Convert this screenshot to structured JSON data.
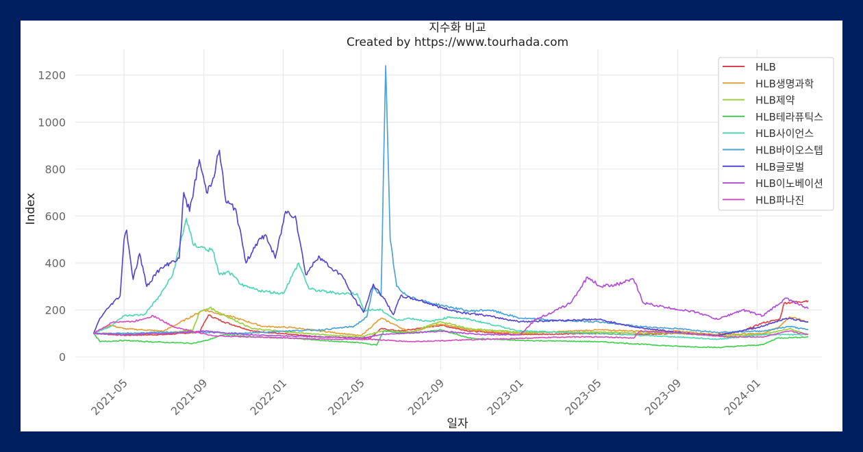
{
  "chart_data": {
    "type": "line",
    "title": "지수화 비교",
    "subtitle": "Created by https://www.tourhada.com",
    "xlabel": "일자",
    "ylabel": "Index",
    "ylim": [
      -55,
      1310
    ],
    "xlim": [
      "2021-02-15",
      "2024-04-10"
    ],
    "yticks": [
      0,
      200,
      400,
      600,
      800,
      1000,
      1200
    ],
    "xticks": [
      "2021-05",
      "2021-09",
      "2022-01",
      "2022-05",
      "2022-09",
      "2023-01",
      "2023-05",
      "2023-09",
      "2024-01"
    ],
    "grid": true,
    "legend_position": "top-right",
    "series": [
      {
        "name": "HLB",
        "color": "#d9434a",
        "points": [
          [
            "2021-03-15",
            100
          ],
          [
            "2021-05-01",
            92
          ],
          [
            "2021-07-01",
            95
          ],
          [
            "2021-08-25",
            105
          ],
          [
            "2021-09-08",
            178
          ],
          [
            "2021-10-01",
            150
          ],
          [
            "2021-11-15",
            110
          ],
          [
            "2022-01-15",
            95
          ],
          [
            "2022-03-01",
            85
          ],
          [
            "2022-05-15",
            80
          ],
          [
            "2022-06-01",
            120
          ],
          [
            "2022-07-01",
            110
          ],
          [
            "2022-09-01",
            135
          ],
          [
            "2022-10-15",
            110
          ],
          [
            "2023-01-01",
            95
          ],
          [
            "2023-05-01",
            100
          ],
          [
            "2023-07-01",
            95
          ],
          [
            "2023-09-01",
            100
          ],
          [
            "2023-11-01",
            95
          ],
          [
            "2023-12-10",
            110
          ],
          [
            "2024-01-10",
            145
          ],
          [
            "2024-02-05",
            160
          ],
          [
            "2024-02-12",
            230
          ],
          [
            "2024-03-05",
            235
          ],
          [
            "2024-03-20",
            240
          ]
        ]
      },
      {
        "name": "HLB생명과학",
        "color": "#e0a03a",
        "points": [
          [
            "2021-03-15",
            100
          ],
          [
            "2021-04-10",
            135
          ],
          [
            "2021-05-01",
            120
          ],
          [
            "2021-07-01",
            110
          ],
          [
            "2021-09-01",
            200
          ],
          [
            "2021-10-15",
            170
          ],
          [
            "2021-12-01",
            130
          ],
          [
            "2022-01-15",
            125
          ],
          [
            "2022-03-01",
            110
          ],
          [
            "2022-05-01",
            90
          ],
          [
            "2022-06-01",
            165
          ],
          [
            "2022-06-20",
            140
          ],
          [
            "2022-07-15",
            105
          ],
          [
            "2022-09-01",
            140
          ],
          [
            "2022-10-15",
            115
          ],
          [
            "2023-01-01",
            100
          ],
          [
            "2023-05-01",
            115
          ],
          [
            "2023-07-01",
            110
          ],
          [
            "2023-09-01",
            110
          ],
          [
            "2023-11-01",
            95
          ],
          [
            "2024-01-10",
            100
          ],
          [
            "2024-02-05",
            130
          ],
          [
            "2024-02-20",
            170
          ],
          [
            "2024-03-20",
            150
          ]
        ]
      },
      {
        "name": "HLB제약",
        "color": "#9bcf3c",
        "points": [
          [
            "2021-03-15",
            100
          ],
          [
            "2021-05-01",
            100
          ],
          [
            "2021-07-01",
            100
          ],
          [
            "2021-08-15",
            115
          ],
          [
            "2021-08-25",
            190
          ],
          [
            "2021-09-10",
            210
          ],
          [
            "2021-10-01",
            180
          ],
          [
            "2021-11-15",
            120
          ],
          [
            "2022-01-15",
            105
          ],
          [
            "2022-03-01",
            95
          ],
          [
            "2022-05-01",
            85
          ],
          [
            "2022-06-01",
            110
          ],
          [
            "2022-07-15",
            105
          ],
          [
            "2022-09-01",
            150
          ],
          [
            "2022-10-15",
            120
          ],
          [
            "2023-01-01",
            105
          ],
          [
            "2023-05-01",
            105
          ],
          [
            "2023-09-01",
            100
          ],
          [
            "2023-11-01",
            90
          ],
          [
            "2024-01-10",
            95
          ],
          [
            "2024-02-20",
            120
          ],
          [
            "2024-03-20",
            95
          ]
        ]
      },
      {
        "name": "HLB테라퓨틱스",
        "color": "#43d052",
        "points": [
          [
            "2021-03-15",
            100
          ],
          [
            "2021-03-25",
            65
          ],
          [
            "2021-05-01",
            70
          ],
          [
            "2021-07-01",
            62
          ],
          [
            "2021-08-15",
            58
          ],
          [
            "2021-09-05",
            70
          ],
          [
            "2021-10-01",
            95
          ],
          [
            "2021-11-15",
            85
          ],
          [
            "2022-01-15",
            80
          ],
          [
            "2022-03-01",
            70
          ],
          [
            "2022-05-01",
            60
          ],
          [
            "2022-05-25",
            50
          ],
          [
            "2022-06-05",
            110
          ],
          [
            "2022-07-15",
            100
          ],
          [
            "2022-09-01",
            115
          ],
          [
            "2022-10-15",
            80
          ],
          [
            "2023-01-01",
            70
          ],
          [
            "2023-05-01",
            65
          ],
          [
            "2023-09-01",
            45
          ],
          [
            "2023-11-01",
            40
          ],
          [
            "2024-01-10",
            52
          ],
          [
            "2024-02-01",
            80
          ],
          [
            "2024-03-20",
            85
          ]
        ]
      },
      {
        "name": "HLB사이언스",
        "color": "#4fd6b4",
        "points": [
          [
            "2021-03-15",
            100
          ],
          [
            "2021-04-10",
            130
          ],
          [
            "2021-05-01",
            175
          ],
          [
            "2021-06-01",
            180
          ],
          [
            "2021-06-25",
            260
          ],
          [
            "2021-07-15",
            350
          ],
          [
            "2021-08-05",
            590
          ],
          [
            "2021-08-15",
            480
          ],
          [
            "2021-09-15",
            450
          ],
          [
            "2021-09-25",
            350
          ],
          [
            "2021-10-10",
            360
          ],
          [
            "2021-11-01",
            300
          ],
          [
            "2021-12-01",
            280
          ],
          [
            "2022-01-01",
            270
          ],
          [
            "2022-01-25",
            400
          ],
          [
            "2022-02-10",
            290
          ],
          [
            "2022-03-01",
            280
          ],
          [
            "2022-04-01",
            270
          ],
          [
            "2022-04-25",
            270
          ],
          [
            "2022-05-05",
            200
          ],
          [
            "2022-06-01",
            200
          ],
          [
            "2022-06-25",
            155
          ],
          [
            "2022-07-15",
            165
          ],
          [
            "2022-08-15",
            150
          ],
          [
            "2022-09-15",
            170
          ],
          [
            "2022-10-15",
            160
          ],
          [
            "2023-01-01",
            110
          ],
          [
            "2023-05-01",
            100
          ],
          [
            "2023-09-01",
            85
          ],
          [
            "2023-11-01",
            75
          ],
          [
            "2024-01-10",
            95
          ],
          [
            "2024-03-20",
            95
          ]
        ]
      },
      {
        "name": "HLB바이오스텝",
        "color": "#4aa3d6",
        "points": [
          [
            "2021-03-15",
            100
          ],
          [
            "2021-05-01",
            100
          ],
          [
            "2021-07-01",
            105
          ],
          [
            "2021-09-01",
            105
          ],
          [
            "2021-11-01",
            100
          ],
          [
            "2022-01-01",
            110
          ],
          [
            "2022-03-01",
            115
          ],
          [
            "2022-04-20",
            130
          ],
          [
            "2022-05-10",
            170
          ],
          [
            "2022-05-20",
            300
          ],
          [
            "2022-06-01",
            260
          ],
          [
            "2022-06-08",
            1240
          ],
          [
            "2022-06-15",
            500
          ],
          [
            "2022-06-25",
            300
          ],
          [
            "2022-07-05",
            270
          ],
          [
            "2022-08-01",
            240
          ],
          [
            "2022-09-01",
            220
          ],
          [
            "2022-10-15",
            195
          ],
          [
            "2022-11-15",
            200
          ],
          [
            "2023-01-01",
            165
          ],
          [
            "2023-03-01",
            155
          ],
          [
            "2023-05-01",
            150
          ],
          [
            "2023-07-01",
            130
          ],
          [
            "2023-09-01",
            120
          ],
          [
            "2023-11-01",
            105
          ],
          [
            "2024-01-10",
            110
          ],
          [
            "2024-02-20",
            130
          ],
          [
            "2024-03-20",
            115
          ]
        ]
      },
      {
        "name": "HLB글로벌",
        "color": "#5646d0",
        "points": [
          [
            "2021-03-15",
            100
          ],
          [
            "2021-03-25",
            165
          ],
          [
            "2021-04-10",
            220
          ],
          [
            "2021-04-25",
            260
          ],
          [
            "2021-05-01",
            500
          ],
          [
            "2021-05-05",
            540
          ],
          [
            "2021-05-15",
            330
          ],
          [
            "2021-05-25",
            440
          ],
          [
            "2021-06-05",
            300
          ],
          [
            "2021-06-20",
            360
          ],
          [
            "2021-07-10",
            400
          ],
          [
            "2021-07-25",
            420
          ],
          [
            "2021-08-01",
            700
          ],
          [
            "2021-08-10",
            620
          ],
          [
            "2021-08-25",
            840
          ],
          [
            "2021-09-05",
            700
          ],
          [
            "2021-09-15",
            760
          ],
          [
            "2021-09-25",
            880
          ],
          [
            "2021-10-05",
            660
          ],
          [
            "2021-10-20",
            630
          ],
          [
            "2021-11-05",
            400
          ],
          [
            "2021-11-20",
            480
          ],
          [
            "2021-12-05",
            520
          ],
          [
            "2021-12-20",
            420
          ],
          [
            "2022-01-05",
            620
          ],
          [
            "2022-01-20",
            600
          ],
          [
            "2022-02-05",
            350
          ],
          [
            "2022-02-25",
            430
          ],
          [
            "2022-03-15",
            380
          ],
          [
            "2022-04-01",
            350
          ],
          [
            "2022-04-20",
            250
          ],
          [
            "2022-05-05",
            190
          ],
          [
            "2022-05-20",
            310
          ],
          [
            "2022-06-05",
            250
          ],
          [
            "2022-06-20",
            180
          ],
          [
            "2022-07-01",
            260
          ],
          [
            "2022-08-01",
            240
          ],
          [
            "2022-09-01",
            210
          ],
          [
            "2022-10-01",
            190
          ],
          [
            "2022-11-01",
            180
          ],
          [
            "2023-01-01",
            150
          ],
          [
            "2023-03-01",
            155
          ],
          [
            "2023-05-01",
            160
          ],
          [
            "2023-07-01",
            125
          ],
          [
            "2023-09-01",
            105
          ],
          [
            "2023-11-01",
            90
          ],
          [
            "2024-01-10",
            130
          ],
          [
            "2024-02-15",
            165
          ],
          [
            "2024-03-20",
            150
          ]
        ]
      },
      {
        "name": "HLB이노베이션",
        "color": "#b04fd6",
        "points": [
          [
            "2021-03-15",
            100
          ],
          [
            "2021-05-01",
            95
          ],
          [
            "2021-07-01",
            100
          ],
          [
            "2021-09-01",
            110
          ],
          [
            "2021-11-01",
            95
          ],
          [
            "2022-01-01",
            90
          ],
          [
            "2022-03-01",
            85
          ],
          [
            "2022-05-01",
            80
          ],
          [
            "2022-06-01",
            95
          ],
          [
            "2022-07-01",
            100
          ],
          [
            "2022-09-01",
            110
          ],
          [
            "2022-11-01",
            95
          ],
          [
            "2023-01-01",
            95
          ],
          [
            "2023-01-25",
            160
          ],
          [
            "2023-02-20",
            190
          ],
          [
            "2023-03-20",
            230
          ],
          [
            "2023-04-15",
            340
          ],
          [
            "2023-05-05",
            300
          ],
          [
            "2023-06-01",
            310
          ],
          [
            "2023-06-25",
            330
          ],
          [
            "2023-07-10",
            230
          ],
          [
            "2023-08-15",
            210
          ],
          [
            "2023-10-01",
            190
          ],
          [
            "2023-11-01",
            160
          ],
          [
            "2023-12-10",
            200
          ],
          [
            "2024-01-10",
            175
          ],
          [
            "2024-02-15",
            250
          ],
          [
            "2024-03-20",
            205
          ]
        ]
      },
      {
        "name": "HLB파나진",
        "color": "#d44fbe",
        "points": [
          [
            "2021-03-15",
            100
          ],
          [
            "2021-04-15",
            150
          ],
          [
            "2021-05-15",
            150
          ],
          [
            "2021-06-15",
            175
          ],
          [
            "2021-07-15",
            130
          ],
          [
            "2021-08-20",
            105
          ],
          [
            "2021-09-15",
            90
          ],
          [
            "2021-11-15",
            85
          ],
          [
            "2022-01-15",
            80
          ],
          [
            "2022-03-15",
            75
          ],
          [
            "2022-05-15",
            75
          ],
          [
            "2022-07-15",
            65
          ],
          [
            "2022-09-15",
            70
          ],
          [
            "2022-11-15",
            75
          ],
          [
            "2023-01-15",
            80
          ],
          [
            "2023-03-15",
            85
          ],
          [
            "2023-05-15",
            85
          ],
          [
            "2023-06-25",
            80
          ],
          [
            "2023-07-05",
            110
          ],
          [
            "2023-09-15",
            100
          ],
          [
            "2023-11-15",
            85
          ],
          [
            "2024-01-10",
            85
          ],
          [
            "2024-02-20",
            110
          ],
          [
            "2024-03-20",
            95
          ]
        ]
      }
    ]
  }
}
